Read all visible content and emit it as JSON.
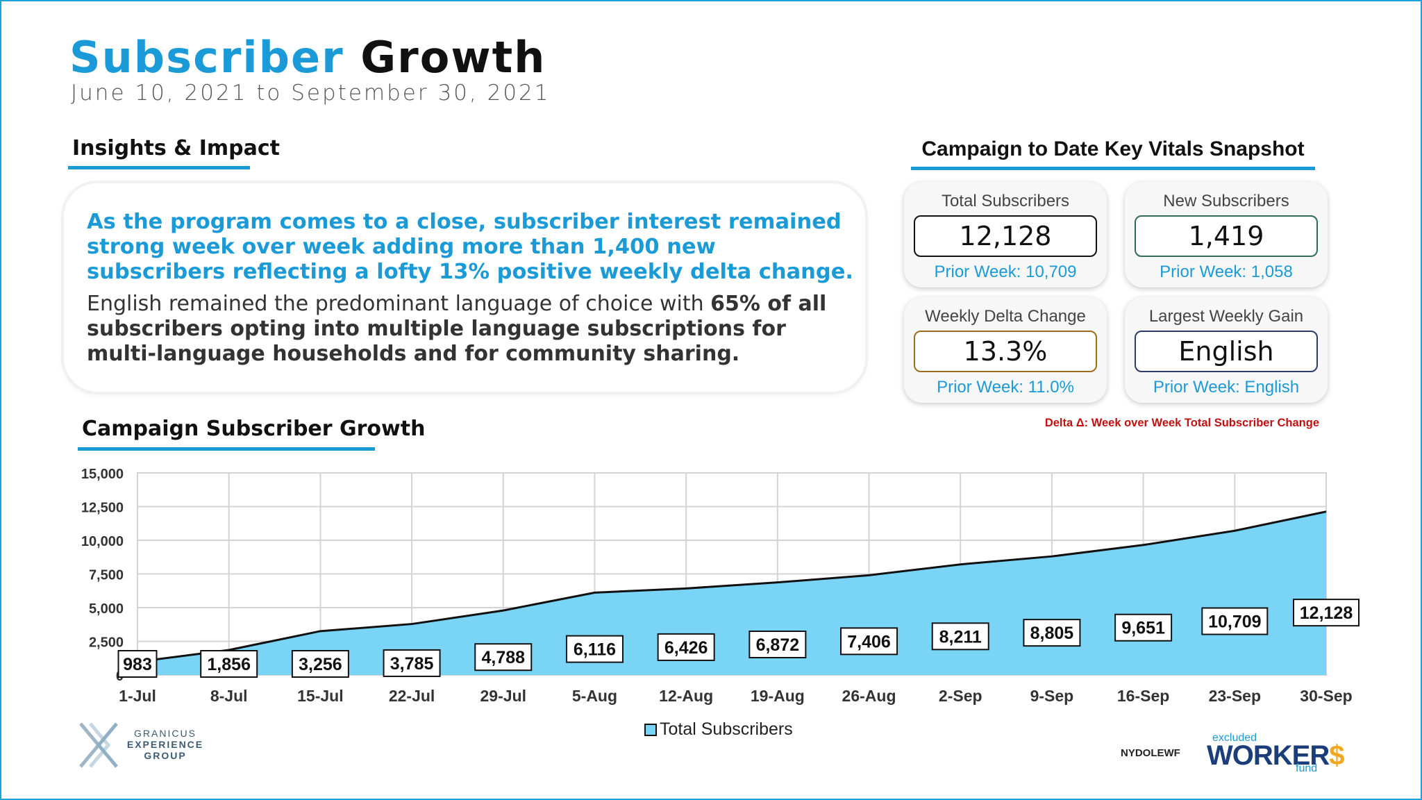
{
  "header": {
    "title_blue": "Subscriber",
    "title_dark": "Growth",
    "subtitle": "June 10, 2021 to September 30, 2021"
  },
  "insights": {
    "heading": "Insights & Impact",
    "lead": "As the program comes to a close, subscriber interest remained strong week over week adding more than 1,400 new subscribers reflecting a lofty 13% positive weekly delta change.",
    "body_plain": "English remained the predominant language of choice with ",
    "body_bold": "65% of all subscribers opting into multiple language subscriptions for multi-language households and for community sharing."
  },
  "vitals": {
    "heading": "Campaign to Date Key Vitals Snapshot",
    "cards": [
      {
        "label": "Total Subscribers",
        "value": "12,128",
        "prior": "Prior Week: 10,709",
        "border": "#111111"
      },
      {
        "label": "New Subscribers",
        "value": "1,419",
        "prior": "Prior Week: 1,058",
        "border": "#2e6b58"
      },
      {
        "label": "Weekly Delta Change",
        "value": "13.3%",
        "prior": "Prior Week: 11.0%",
        "border": "#9a6b1a"
      },
      {
        "label": "Largest Weekly Gain",
        "value": "English",
        "prior": "Prior Week: English",
        "border": "#2e3a6b"
      }
    ],
    "delta_note": "Delta Δ: Week over Week Total Subscriber Change"
  },
  "chart_section": {
    "heading": "Campaign Subscriber Growth"
  },
  "chart_data": {
    "type": "area",
    "title": "Campaign Subscriber Growth",
    "xlabel": "",
    "ylabel": "",
    "categories": [
      "1-Jul",
      "8-Jul",
      "15-Jul",
      "22-Jul",
      "29-Jul",
      "5-Aug",
      "12-Aug",
      "19-Aug",
      "26-Aug",
      "2-Sep",
      "9-Sep",
      "16-Sep",
      "23-Sep",
      "30-Sep"
    ],
    "series": [
      {
        "name": "Total Subscribers",
        "values": [
          983,
          1856,
          3256,
          3785,
          4788,
          6116,
          6426,
          6872,
          7406,
          8211,
          8805,
          9651,
          10709,
          12128
        ]
      }
    ],
    "data_labels": [
      "983",
      "1,856",
      "3,256",
      "3,785",
      "4,788",
      "6,116",
      "6,426",
      "6,872",
      "7,406",
      "8,211",
      "8,805",
      "9,651",
      "10,709",
      "12,128"
    ],
    "ylim": [
      0,
      15000
    ],
    "yticks": [
      0,
      2500,
      5000,
      7500,
      10000,
      12500,
      15000
    ],
    "ytick_labels": [
      "0",
      "2,500",
      "5,000",
      "7,500",
      "10,000",
      "12,500",
      "15,000"
    ],
    "grid": true,
    "legend": "bottom",
    "colors": {
      "fill": "#7ad4f6",
      "line": "#111111",
      "grid": "#d4d4d4"
    }
  },
  "footer": {
    "logo_left_lines": [
      "GRANICUS",
      "EXPERIENCE",
      "GROUP"
    ],
    "nydol": "NYDOLEWF",
    "workers_top": "excluded",
    "workers_main": "WORKER",
    "workers_dollar": "$",
    "workers_bottom": "fund"
  },
  "colors": {
    "accent": "#1a9ad6",
    "alert": "#c01010"
  }
}
